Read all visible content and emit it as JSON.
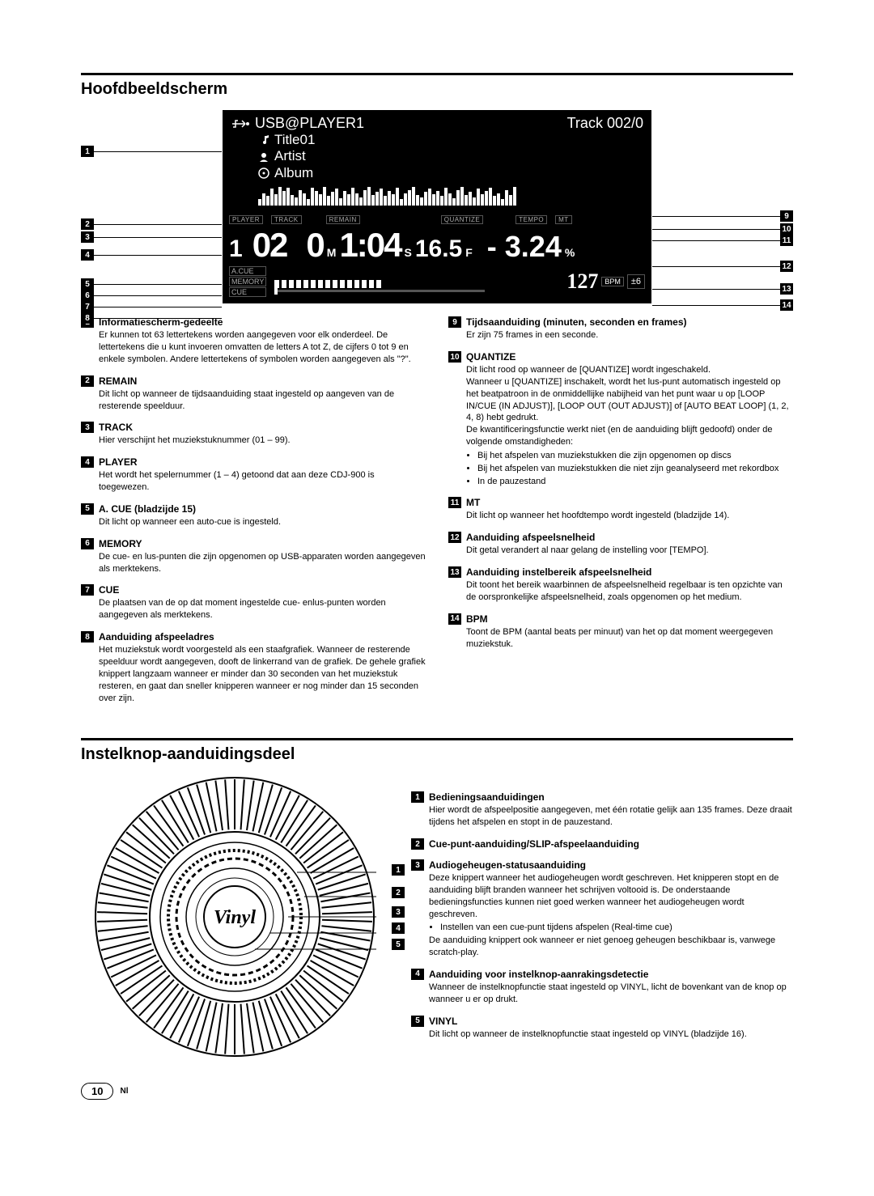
{
  "section1": {
    "title": "Hoofdbeeldscherm",
    "display": {
      "source": "USB@PLAYER1",
      "track_counter": "Track 002/0",
      "title": "Title01",
      "artist": "Artist",
      "album": "Album",
      "labels": {
        "player": "PLAYER",
        "track": "TRACK",
        "remain": "REMAIN",
        "quantize": "QUANTIZE",
        "tempo": "TEMPO",
        "mt": "MT",
        "acue": "A.CUE",
        "memory": "MEMORY",
        "cue": "CUE",
        "bpm": "BPM",
        "pm": "±6"
      },
      "player_num": "1",
      "track_num": "02",
      "time_min": "0",
      "time_min_label": "M",
      "time_sec": "1:04",
      "time_sec_label": "S",
      "time_frame": "16.5",
      "time_frame_label": "F",
      "tempo_val": "- 3.24",
      "tempo_pct": "%",
      "bpm_val": "127"
    },
    "left_items": [
      {
        "n": "1",
        "title": "Informatiescherm-gedeelte",
        "body": "Er kunnen tot 63 lettertekens worden aangegeven voor elk onderdeel. De lettertekens die u kunt invoeren omvatten de letters A tot Z, de cijfers 0 tot 9 en enkele symbolen. Andere lettertekens of symbolen worden aangegeven als \"?\"."
      },
      {
        "n": "2",
        "title": "REMAIN",
        "body": "Dit licht op wanneer de tijdsaanduiding staat ingesteld op aangeven van de resterende speelduur."
      },
      {
        "n": "3",
        "title": "TRACK",
        "body": "Hier verschijnt het muziekstuknummer (01 – 99)."
      },
      {
        "n": "4",
        "title": "PLAYER",
        "body": "Het wordt het spelernummer (1 – 4) getoond dat aan deze CDJ-900 is toegewezen."
      },
      {
        "n": "5",
        "title": "A. CUE (bladzijde 15)",
        "body": "Dit licht op wanneer een auto-cue is ingesteld."
      },
      {
        "n": "6",
        "title": "MEMORY",
        "body": "De cue- en lus-punten  die zijn opgenomen op USB-apparaten worden aangegeven als merktekens."
      },
      {
        "n": "7",
        "title": "CUE",
        "body": "De plaatsen van de op dat moment ingestelde cue- enlus-punten worden aangegeven als merktekens."
      },
      {
        "n": "8",
        "title": "Aanduiding afspeeladres",
        "body": "Het muziekstuk wordt voorgesteld als een staafgrafiek. Wanneer de resterende speelduur wordt aangegeven, dooft de linkerrand van de grafiek. De gehele grafiek knippert langzaam wanneer er minder dan 30 seconden van het muziekstuk resteren, en gaat dan sneller knipperen wanneer er nog minder dan 15 seconden over zijn."
      }
    ],
    "right_items": [
      {
        "n": "9",
        "title": "Tijdsaanduiding (minuten, seconden en frames)",
        "body": "Er zijn 75 frames in een seconde."
      },
      {
        "n": "10",
        "title": "QUANTIZE",
        "body": "Dit licht rood op wanneer de [QUANTIZE] wordt ingeschakeld.\nWanneer u [QUANTIZE] inschakelt, wordt het lus-punt automatisch ingesteld op het beatpatroon in de onmiddellijke nabijheid van het punt waar u op [LOOP IN/CUE (IN ADJUST)], [LOOP OUT (OUT ADJUST)] of [AUTO BEAT LOOP] (1, 2, 4, 8) hebt gedrukt.\nDe kwantificeringsfunctie werkt niet (en de aanduiding blijft gedoofd) onder de volgende omstandigheden:",
        "bullets": [
          "Bij het afspelen van muziekstukken die zijn opgenomen op discs",
          "Bij het afspelen van muziekstukken die niet zijn geanalyseerd met rekordbox",
          "In de pauzestand"
        ]
      },
      {
        "n": "11",
        "title": "MT",
        "body": "Dit licht op wanneer het hoofdtempo wordt ingesteld (bladzijde 14)."
      },
      {
        "n": "12",
        "title": "Aanduiding afspeelsnelheid",
        "body": "Dit getal verandert al naar gelang de instelling voor [TEMPO]."
      },
      {
        "n": "13",
        "title": "Aanduiding instelbereik afspeelsnelheid",
        "body": "Dit toont het bereik waarbinnen de afspeelsnelheid regelbaar is ten opzichte van de oorspronkelijke afspeelsnelheid, zoals opgenomen op het medium."
      },
      {
        "n": "14",
        "title": "BPM",
        "body": "Toont de BPM (aantal beats per minuut) van het op dat moment weergegeven muziekstuk."
      }
    ]
  },
  "section2": {
    "title": "Instelknop-aanduidingsdeel",
    "center_label": "Vinyl",
    "items": [
      {
        "n": "1",
        "title": "Bedieningsaanduidingen",
        "body": "Hier wordt de afspeelpositie aangegeven, met één rotatie gelijk aan 135 frames. Deze draait tijdens het afspelen en stopt in de pauzestand."
      },
      {
        "n": "2",
        "title": "Cue-punt-aanduiding/SLIP-afspeelaanduiding",
        "body": ""
      },
      {
        "n": "3",
        "title": "Audiogeheugen-statusaanduiding",
        "body": "Deze knippert wanneer het audiogeheugen wordt geschreven. Het knipperen stopt en de aanduiding blijft branden wanneer het schrijven voltooid is. De onderstaande bedieningsfuncties kunnen niet goed werken wanneer het audiogeheugen wordt geschreven.",
        "bullets": [
          "Instellen van een cue-punt tijdens afspelen (Real-time cue)"
        ],
        "after": "De aanduiding knippert ook wanneer er niet genoeg geheugen beschikbaar is, vanwege scratch-play."
      },
      {
        "n": "4",
        "title": "Aanduiding voor instelknop-aanrakingsdetectie",
        "body": "Wanneer de instelknopfunctie staat ingesteld op VINYL, licht de bovenkant van de knop op wanneer u er op drukt."
      },
      {
        "n": "5",
        "title": "VINYL",
        "body": "Dit licht op wanneer de instelknopfunctie staat ingesteld op VINYL (bladzijde 16)."
      }
    ]
  },
  "footer": {
    "page": "10",
    "lang": "Nl"
  },
  "colors": {
    "bg": "#000000",
    "fg": "#ffffff",
    "dim": "#aaaaaa"
  }
}
